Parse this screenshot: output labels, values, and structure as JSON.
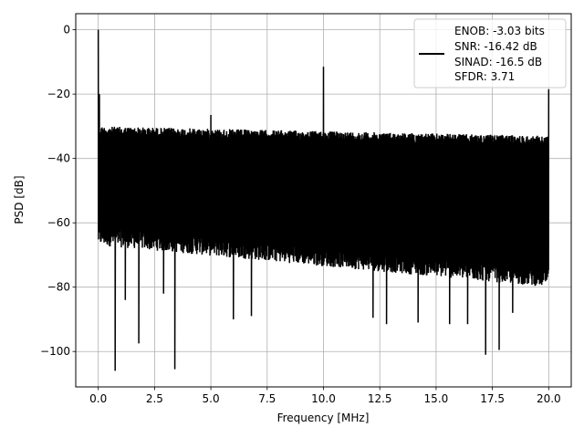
{
  "chart_data": {
    "type": "line",
    "title": "",
    "xlabel": "Frequency [MHz]",
    "ylabel": "PSD [dB]",
    "xlim": [
      -1.0,
      21.0
    ],
    "ylim": [
      -111.0,
      5.0
    ],
    "x_ticks": [
      0.0,
      2.5,
      5.0,
      7.5,
      10.0,
      12.5,
      15.0,
      17.5,
      20.0
    ],
    "x_tick_labels": [
      "0.0",
      "2.5",
      "5.0",
      "7.5",
      "10.0",
      "12.5",
      "15.0",
      "17.5",
      "20.0"
    ],
    "y_ticks": [
      0,
      -20,
      -40,
      -60,
      -80,
      -100
    ],
    "y_tick_labels": [
      "0",
      "−20",
      "−40",
      "−60",
      "−80",
      "−100"
    ],
    "grid": true,
    "legend_position": "top-right",
    "legend_lines": [
      "ENOB: -3.03 bits",
      "SNR: -16.42 dB",
      "SINAD: -16.5 dB",
      "SFDR: 3.71"
    ],
    "line_color": "#000000",
    "noise_floor": {
      "x_range": [
        0.0,
        20.0
      ],
      "upper_envelope_db": [
        -30,
        -33
      ],
      "lower_envelope_db": [
        -67,
        -80
      ]
    },
    "spurs": [
      {
        "x": 0.0,
        "y": 0.0
      },
      {
        "x": 0.05,
        "y": -20.0
      },
      {
        "x": 5.0,
        "y": -26.5
      },
      {
        "x": 10.0,
        "y": -11.5
      },
      {
        "x": 20.0,
        "y": -18.5
      }
    ],
    "dips": [
      {
        "x": 0.75,
        "y": -106.0
      },
      {
        "x": 1.8,
        "y": -97.5
      },
      {
        "x": 3.4,
        "y": -105.5
      },
      {
        "x": 1.2,
        "y": -84.0
      },
      {
        "x": 2.9,
        "y": -82.0
      },
      {
        "x": 6.0,
        "y": -90.0
      },
      {
        "x": 6.8,
        "y": -89.0
      },
      {
        "x": 12.2,
        "y": -89.5
      },
      {
        "x": 12.8,
        "y": -91.5
      },
      {
        "x": 14.2,
        "y": -91.0
      },
      {
        "x": 15.6,
        "y": -91.5
      },
      {
        "x": 16.4,
        "y": -91.5
      },
      {
        "x": 17.2,
        "y": -101.0
      },
      {
        "x": 17.8,
        "y": -99.5
      },
      {
        "x": 18.4,
        "y": -88.0
      }
    ],
    "series": [
      {
        "name": "ENOB: -3.03 bits"
      }
    ]
  }
}
